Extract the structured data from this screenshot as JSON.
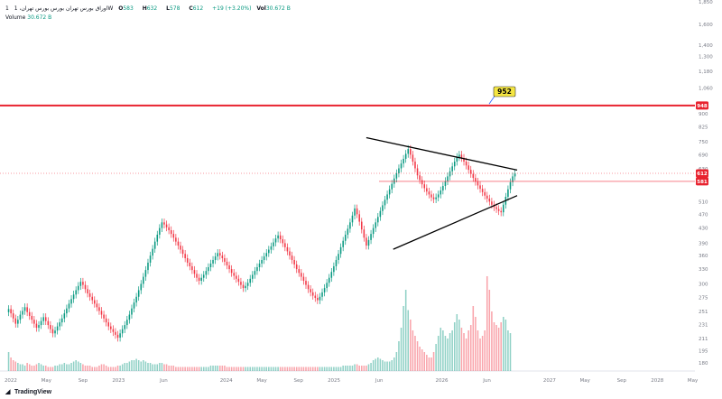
{
  "header": {
    "symbol": "1",
    "name": "اوراق بورس تهران بورس بورس تهران، 1W",
    "open_label": "O",
    "open": "583",
    "high_label": "H",
    "high": "632",
    "low_label": "L",
    "low": "578",
    "close_label": "C",
    "close": "612",
    "change": "+19 (+3.20%)",
    "vol_label": "Vol",
    "vol": "30.672 B"
  },
  "volume": {
    "label": "Volume",
    "value": "30.672 B"
  },
  "branding": {
    "name": "TradingView"
  },
  "colors": {
    "up": "#089981",
    "down": "#f23645",
    "level": "#e8232f",
    "callout": "#f5e642"
  },
  "chart_data": {
    "type": "candlestick",
    "title": "",
    "yscale": "log",
    "ylim": [
      170,
      1850
    ],
    "y_ticks": [
      "1,850",
      "1,600",
      "1,400",
      "1,300",
      "1,180",
      "1,060",
      "960",
      "900",
      "825",
      "750",
      "690",
      "630",
      "581",
      "510",
      "470",
      "430",
      "390",
      "360",
      "330",
      "300",
      "275",
      "251",
      "231",
      "211",
      "195",
      "180"
    ],
    "x_ticks": [
      "2022",
      "May",
      "Sep",
      "2023",
      "Jun",
      "2024",
      "May",
      "Sep",
      "2025",
      "Jun",
      "2026",
      "Jun",
      "2027",
      "May",
      "Sep",
      "2028",
      "May"
    ],
    "price_labels": [
      {
        "text": "948",
        "value": 948
      },
      {
        "text": "612",
        "value": 612
      },
      {
        "text": "581",
        "value": 581
      }
    ],
    "callout": {
      "text": "952",
      "value": 952
    },
    "horizontal_line": {
      "value": 948
    },
    "trendlines": [
      {
        "from": [
          2025.3,
          770
        ],
        "to": [
          2026.7,
          625
        ]
      },
      {
        "from": [
          2025.55,
          375
        ],
        "to": [
          2026.7,
          530
        ]
      }
    ],
    "series": [
      {
        "x_start": 2021.98,
        "x_end": 2026.68,
        "closes": [
          255,
          248,
          240,
          232,
          238,
          246,
          252,
          258,
          250,
          244,
          238,
          232,
          226,
          230,
          236,
          242,
          236,
          230,
          224,
          218,
          222,
          228,
          234,
          240,
          248,
          256,
          264,
          272,
          280,
          288,
          296,
          304,
          298,
          290,
          282,
          276,
          270,
          264,
          258,
          252,
          246,
          240,
          234,
          228,
          224,
          220,
          216,
          212,
          218,
          224,
          230,
          238,
          246,
          256,
          266,
          276,
          288,
          300,
          314,
          328,
          344,
          360,
          376,
          394,
          412,
          430,
          446,
          440,
          432,
          424,
          414,
          404,
          394,
          384,
          374,
          364,
          354,
          344,
          336,
          328,
          320,
          312,
          306,
          312,
          318,
          326,
          334,
          342,
          350,
          358,
          366,
          360,
          354,
          346,
          338,
          330,
          322,
          316,
          310,
          304,
          298,
          292,
          296,
          302,
          310,
          318,
          326,
          334,
          342,
          350,
          358,
          366,
          374,
          382,
          392,
          402,
          410,
          400,
          390,
          380,
          370,
          360,
          350,
          340,
          330,
          322,
          314,
          306,
          298,
          290,
          284,
          278,
          274,
          270,
          276,
          284,
          292,
          302,
          312,
          324,
          336,
          350,
          364,
          380,
          396,
          412,
          428,
          446,
          466,
          488,
          470,
          448,
          426,
          404,
          384,
          398,
          414,
          430,
          446,
          462,
          480,
          498,
          516,
          534,
          552,
          572,
          592,
          612,
          632,
          652,
          672,
          694,
          716,
          690,
          660,
          632,
          604,
          586,
          570,
          556,
          544,
          534,
          524,
          518,
          524,
          534,
          548,
          564,
          582,
          600,
          620,
          640,
          660,
          680,
          690,
          676,
          660,
          644,
          626,
          610,
          594,
          580,
          566,
          554,
          542,
          530,
          520,
          510,
          500,
          492,
          486,
          480,
          476,
          500,
          526,
          552,
          578,
          600,
          612
        ],
        "volumes": [
          14,
          10,
          8,
          7,
          6,
          5,
          5,
          4,
          6,
          5,
          4,
          4,
          5,
          6,
          5,
          4,
          4,
          3,
          3,
          3,
          4,
          4,
          5,
          5,
          6,
          5,
          5,
          6,
          7,
          8,
          7,
          6,
          5,
          4,
          4,
          4,
          3,
          3,
          3,
          4,
          5,
          5,
          4,
          3,
          3,
          3,
          3,
          4,
          4,
          5,
          6,
          6,
          7,
          8,
          8,
          9,
          8,
          7,
          8,
          7,
          6,
          6,
          5,
          5,
          5,
          6,
          6,
          5,
          5,
          4,
          4,
          4,
          3,
          3,
          3,
          3,
          3,
          3,
          3,
          3,
          3,
          3,
          3,
          3,
          3,
          3,
          3,
          4,
          4,
          4,
          4,
          4,
          4,
          4,
          3,
          3,
          3,
          3,
          3,
          3,
          3,
          3,
          3,
          3,
          3,
          3,
          3,
          3,
          3,
          3,
          3,
          3,
          3,
          3,
          3,
          3,
          3,
          3,
          3,
          3,
          3,
          3,
          3,
          3,
          3,
          3,
          3,
          3,
          3,
          3,
          3,
          3,
          3,
          3,
          3,
          3,
          3,
          3,
          3,
          3,
          3,
          3,
          3,
          3,
          4,
          4,
          4,
          4,
          4,
          5,
          5,
          4,
          4,
          4,
          4,
          5,
          6,
          8,
          9,
          10,
          9,
          8,
          7,
          7,
          7,
          8,
          10,
          14,
          22,
          32,
          48,
          60,
          45,
          38,
          30,
          26,
          22,
          18,
          16,
          14,
          12,
          10,
          10,
          14,
          20,
          26,
          32,
          30,
          26,
          24,
          28,
          30,
          36,
          42,
          38,
          32,
          28,
          24,
          30,
          34,
          48,
          40,
          30,
          24,
          26,
          30,
          70,
          60,
          44,
          36,
          34,
          32,
          36,
          40,
          38,
          30,
          28
        ]
      }
    ]
  }
}
